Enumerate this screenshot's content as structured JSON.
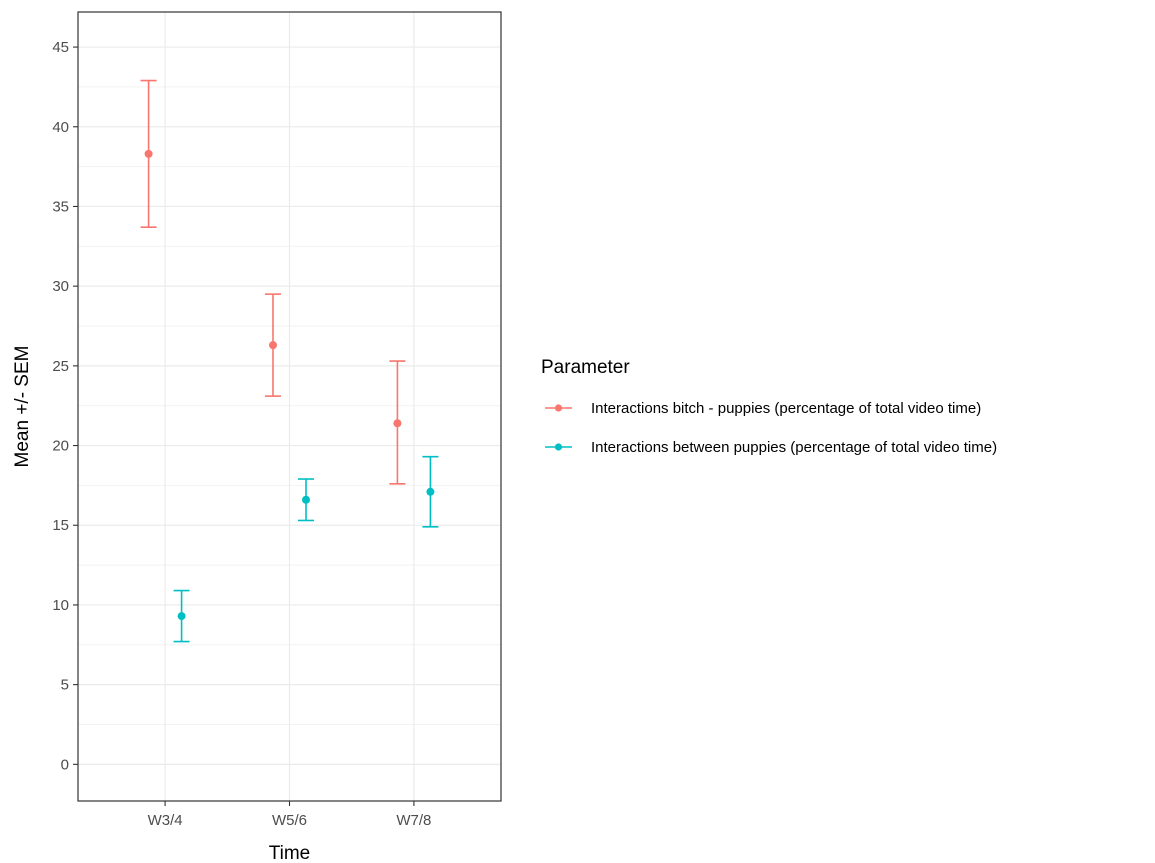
{
  "chart_data": {
    "type": "scatter",
    "subtype": "point-with-errorbars",
    "xlabel": "Time",
    "ylabel": "Mean +/- SEM",
    "categories": [
      "W3/4",
      "W5/6",
      "W7/8"
    ],
    "ylim": [
      -2.3,
      47.2
    ],
    "yticks": [
      0,
      5,
      10,
      15,
      20,
      25,
      30,
      35,
      40,
      45
    ],
    "grid": true,
    "legend": {
      "title": "Parameter",
      "position": "right"
    },
    "series": [
      {
        "name": "Interactions  bitch - puppies (percentage of total video time)",
        "color": "#F8766D",
        "mean": [
          38.3,
          26.3,
          21.4
        ],
        "lower": [
          33.7,
          23.1,
          17.6
        ],
        "upper": [
          42.9,
          29.5,
          25.3
        ]
      },
      {
        "name": "Interactions between puppies (percentage of total video time)",
        "color": "#00BFC4",
        "mean": [
          9.3,
          16.6,
          17.1
        ],
        "lower": [
          7.7,
          15.3,
          14.9
        ],
        "upper": [
          10.9,
          17.9,
          19.3
        ]
      }
    ]
  }
}
